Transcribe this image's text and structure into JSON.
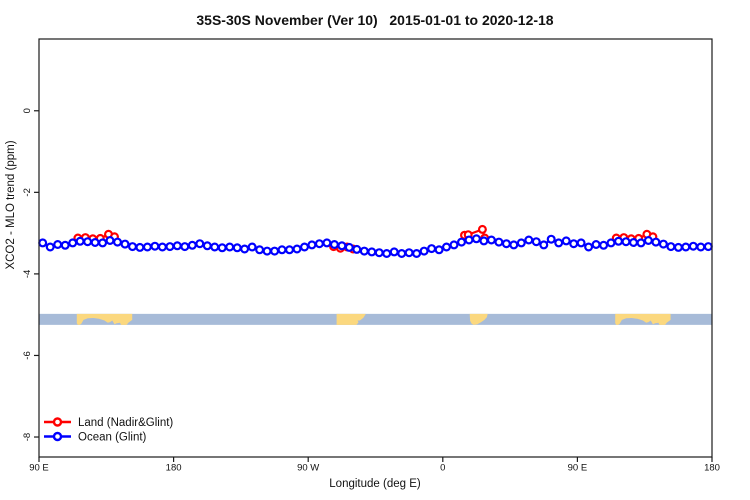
{
  "chart_data": {
    "type": "line",
    "title": "35S-30S November (Ver 10)   2015-01-01 to 2020-12-18",
    "xlabel": "Longitude (deg E)",
    "ylabel": "XCO2 - MLO trend (ppm)",
    "xlim": [
      90,
      540
    ],
    "ylim": [
      -8.49,
      1.76
    ],
    "grid": false,
    "legend_position": "bottom-left-inside",
    "x_ticks": [
      {
        "value": 90,
        "label": "90 E"
      },
      {
        "value": 180,
        "label": "180"
      },
      {
        "value": 270,
        "label": "90 W"
      },
      {
        "value": 360,
        "label": "0"
      },
      {
        "value": 450,
        "label": "90 E"
      },
      {
        "value": 540,
        "label": "180"
      }
    ],
    "y_ticks": [
      {
        "value": 0,
        "label": "0"
      },
      {
        "value": -2,
        "label": "-2"
      },
      {
        "value": -4,
        "label": "-4"
      },
      {
        "value": -6,
        "label": "-6"
      },
      {
        "value": -8,
        "label": "-8"
      }
    ],
    "series": [
      {
        "name": "Land (Nadir&Glint)",
        "color": "#ff0000",
        "groups": [
          {
            "lon": [
              116,
              121,
              126,
              131,
              136.5,
              140.5
            ],
            "ppm": [
              -3.12,
              -3.11,
              -3.14,
              -3.13,
              -3.03,
              -3.09
            ]
          },
          {
            "lon": [
              287,
              291.5,
              296,
              300
            ],
            "ppm": [
              -3.33,
              -3.37,
              -3.34,
              -3.39
            ]
          },
          {
            "lon": [
              374.5,
              377,
              386.5,
              388
            ],
            "ppm": [
              -3.05,
              -3.04,
              -2.91,
              -3.12
            ]
          },
          {
            "lon": [
              476,
              481,
              486,
              491,
              496.5,
              500.5
            ],
            "ppm": [
              -3.12,
              -3.11,
              -3.14,
              -3.13,
              -3.03,
              -3.09
            ]
          }
        ]
      },
      {
        "name": "Ocean (Glint)",
        "color": "#0000ff",
        "groups": [
          {
            "lon": [
              92.5,
              97.5,
              102.5,
              107.5,
              112.5,
              117.5,
              122.5,
              127.5,
              132.5,
              137.5,
              142.5,
              147.5,
              152.5,
              157.5,
              162.5,
              167.5,
              172.5,
              177.5,
              182.5,
              187.5,
              192.5,
              197.5,
              202.5,
              207.5,
              212.5,
              217.5,
              222.5,
              227.5,
              232.5,
              237.5,
              242.5,
              247.5,
              252.5,
              257.5,
              262.5,
              267.5,
              272.5,
              277.5,
              282.5,
              287.5,
              292.5,
              297.5,
              302.5,
              307.5,
              312.5,
              317.5,
              322.5,
              327.5,
              332.5,
              337.5,
              342.5,
              347.5,
              352.5,
              357.5,
              362.5,
              367.5,
              372.5,
              377.5,
              382.5,
              387.5,
              392.5,
              397.5,
              402.5,
              407.5,
              412.5,
              417.5,
              422.5,
              427.5,
              432.5,
              437.5,
              442.5,
              447.5,
              452.5,
              457.5,
              462.5,
              467.5,
              472.5,
              477.5,
              482.5,
              487.5,
              492.5,
              497.5,
              502.5,
              507.5,
              512.5,
              517.5,
              522.5,
              527.5,
              532.5,
              537.5
            ],
            "ppm": [
              -3.24,
              -3.34,
              -3.28,
              -3.3,
              -3.24,
              -3.2,
              -3.21,
              -3.23,
              -3.24,
              -3.18,
              -3.22,
              -3.27,
              -3.33,
              -3.35,
              -3.34,
              -3.32,
              -3.34,
              -3.33,
              -3.31,
              -3.33,
              -3.3,
              -3.26,
              -3.31,
              -3.34,
              -3.36,
              -3.34,
              -3.36,
              -3.39,
              -3.34,
              -3.41,
              -3.44,
              -3.44,
              -3.41,
              -3.41,
              -3.39,
              -3.34,
              -3.29,
              -3.26,
              -3.24,
              -3.28,
              -3.31,
              -3.35,
              -3.4,
              -3.44,
              -3.46,
              -3.48,
              -3.5,
              -3.46,
              -3.5,
              -3.48,
              -3.5,
              -3.44,
              -3.38,
              -3.41,
              -3.34,
              -3.29,
              -3.22,
              -3.17,
              -3.14,
              -3.19,
              -3.17,
              -3.22,
              -3.26,
              -3.29,
              -3.24,
              -3.17,
              -3.21,
              -3.29,
              -3.15,
              -3.24,
              -3.19,
              -3.26,
              -3.24,
              -3.34,
              -3.28,
              -3.3,
              -3.24,
              -3.2,
              -3.21,
              -3.23,
              -3.24,
              -3.18,
              -3.22,
              -3.27,
              -3.33,
              -3.35,
              -3.34,
              -3.32,
              -3.34,
              -3.33
            ]
          }
        ]
      }
    ],
    "map_band": {
      "description": "land/ocean strip for 35S-30S latitude band",
      "ppm_top": -4.98,
      "ppm_bottom": -5.25,
      "ocean_color": "#a7bbd8",
      "land_color": "#fbd87f",
      "patches": [
        {
          "name": "australia",
          "lon0": 115.3,
          "lon1": 152.3,
          "poly": [
            [
              0,
              0
            ],
            [
              1,
              0
            ],
            [
              1,
              0.55
            ],
            [
              0.93,
              0.8
            ],
            [
              0.9,
              1
            ],
            [
              0.8,
              1
            ],
            [
              0.78,
              0.8
            ],
            [
              0.72,
              0.85
            ],
            [
              0.68,
              0.95
            ],
            [
              0.64,
              0.6
            ],
            [
              0.6,
              0.75
            ],
            [
              0.56,
              0.8
            ],
            [
              0.5,
              0.6
            ],
            [
              0.4,
              0.45
            ],
            [
              0.3,
              0.38
            ],
            [
              0.2,
              0.4
            ],
            [
              0.12,
              0.55
            ],
            [
              0.08,
              0.9
            ],
            [
              0.05,
              1
            ],
            [
              0.02,
              1
            ],
            [
              0,
              0.85
            ]
          ]
        },
        {
          "name": "south-america",
          "lon0": 289,
          "lon1": 308.5,
          "poly": [
            [
              0,
              0
            ],
            [
              1,
              0
            ],
            [
              0.92,
              0.35
            ],
            [
              0.8,
              0.6
            ],
            [
              0.72,
              0.6
            ],
            [
              0.75,
              0.78
            ],
            [
              0.68,
              1
            ],
            [
              0,
              1
            ]
          ]
        },
        {
          "name": "south-africa",
          "lon0": 378,
          "lon1": 390,
          "poly": [
            [
              0,
              0
            ],
            [
              1,
              0
            ],
            [
              0.95,
              0.3
            ],
            [
              0.82,
              0.55
            ],
            [
              0.62,
              0.78
            ],
            [
              0.42,
              0.95
            ],
            [
              0.22,
              1
            ],
            [
              0.1,
              0.88
            ],
            [
              0.02,
              0.62
            ]
          ]
        },
        {
          "name": "australia-repeat",
          "lon0": 475.3,
          "lon1": 512.3,
          "poly": [
            [
              0,
              0
            ],
            [
              1,
              0
            ],
            [
              1,
              0.55
            ],
            [
              0.93,
              0.8
            ],
            [
              0.9,
              1
            ],
            [
              0.8,
              1
            ],
            [
              0.78,
              0.8
            ],
            [
              0.72,
              0.85
            ],
            [
              0.68,
              0.95
            ],
            [
              0.64,
              0.6
            ],
            [
              0.6,
              0.75
            ],
            [
              0.56,
              0.8
            ],
            [
              0.5,
              0.6
            ],
            [
              0.4,
              0.45
            ],
            [
              0.3,
              0.38
            ],
            [
              0.2,
              0.4
            ],
            [
              0.12,
              0.55
            ],
            [
              0.08,
              0.9
            ],
            [
              0.05,
              1
            ],
            [
              0.02,
              1
            ],
            [
              0,
              0.85
            ]
          ]
        }
      ]
    },
    "marker": {
      "shape": "open-circle",
      "fill": "#ffffff"
    },
    "axis_color": "#1a1a1a"
  }
}
